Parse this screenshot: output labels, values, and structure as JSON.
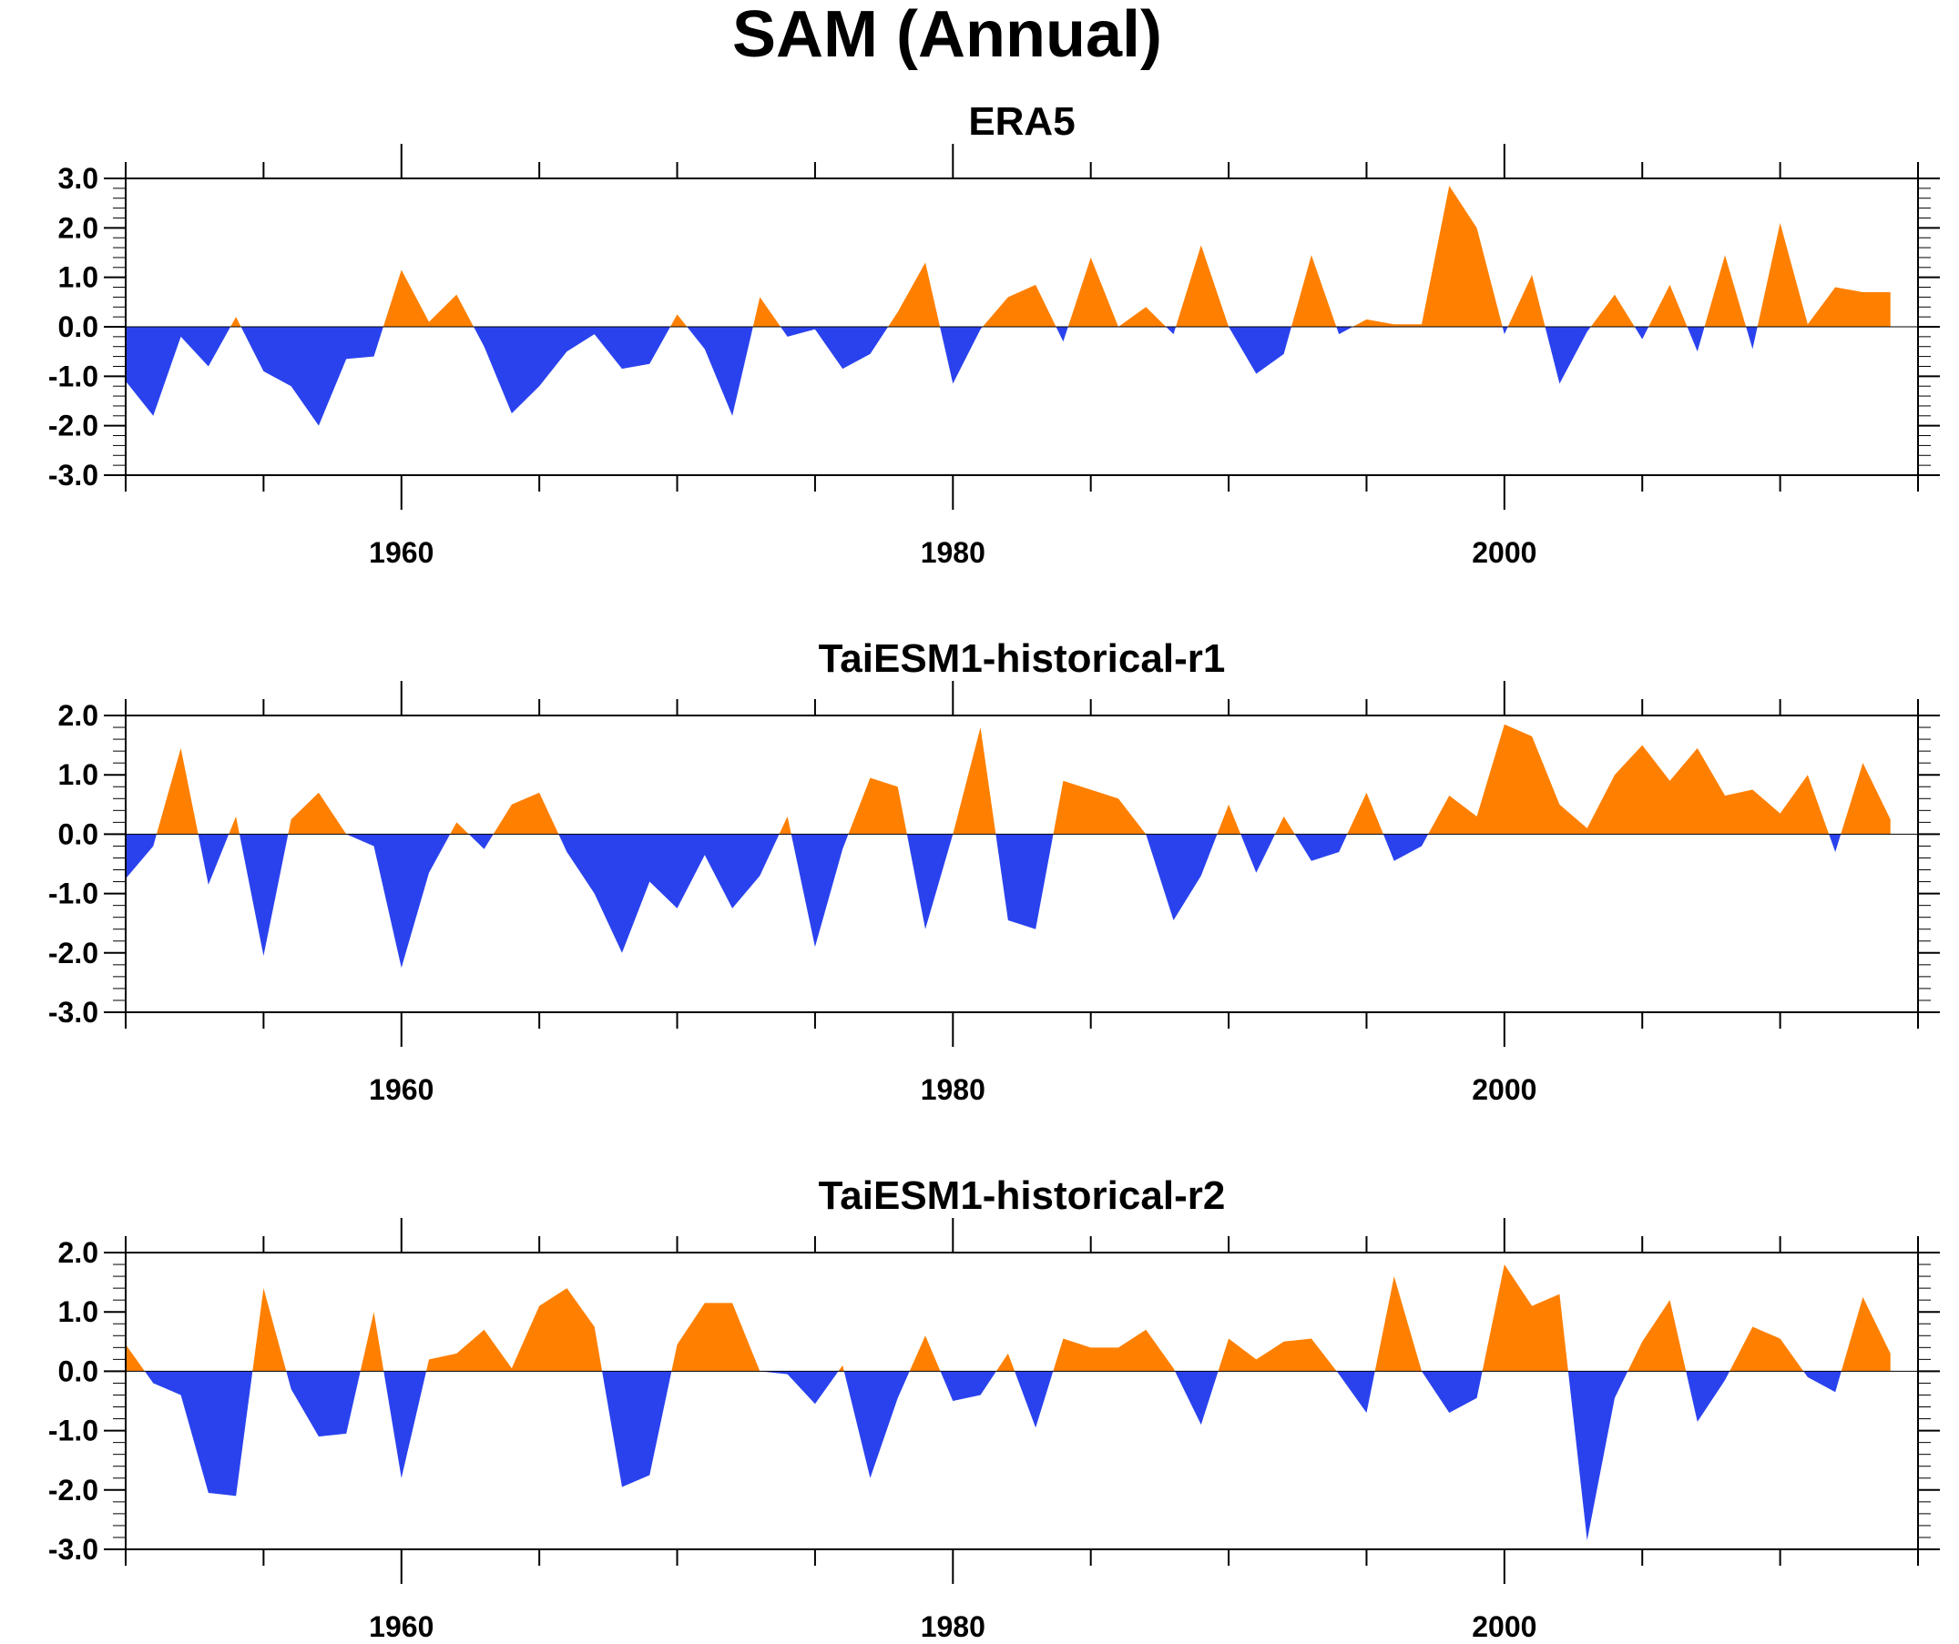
{
  "title": "SAM (Annual)",
  "colors": {
    "positive": "#FF8000",
    "negative": "#2A42EE",
    "axis": "#000000"
  },
  "chart_data": [
    {
      "type": "area",
      "title": "ERA5",
      "xlim": [
        1950,
        2015
      ],
      "ylim": [
        -3,
        3
      ],
      "xticks": [
        1960,
        1980,
        2000
      ],
      "xtick_labels": [
        "1960",
        "1980",
        "2000"
      ],
      "yticks": [
        -3,
        -2,
        -1,
        0,
        1,
        2,
        3
      ],
      "ytick_labels": [
        "-3.0",
        "-2.0",
        "-1.0",
        "0.0",
        "1.0",
        "2.0",
        "3.0"
      ],
      "x": [
        1950,
        1951,
        1952,
        1953,
        1954,
        1955,
        1956,
        1957,
        1958,
        1959,
        1960,
        1961,
        1962,
        1963,
        1964,
        1965,
        1966,
        1967,
        1968,
        1969,
        1970,
        1971,
        1972,
        1973,
        1974,
        1975,
        1976,
        1977,
        1978,
        1979,
        1980,
        1981,
        1982,
        1983,
        1984,
        1985,
        1986,
        1987,
        1988,
        1989,
        1990,
        1991,
        1992,
        1993,
        1994,
        1995,
        1996,
        1997,
        1998,
        1999,
        2000,
        2001,
        2002,
        2003,
        2004,
        2005,
        2006,
        2007,
        2008,
        2009,
        2010,
        2011,
        2012,
        2013,
        2014
      ],
      "values": [
        -1.1,
        -1.8,
        -0.2,
        -0.8,
        0.2,
        -0.9,
        -1.2,
        -2.0,
        -0.65,
        -0.6,
        1.15,
        0.1,
        0.65,
        -0.4,
        -1.75,
        -1.2,
        -0.5,
        -0.15,
        -0.85,
        -0.75,
        0.25,
        -0.45,
        -1.8,
        0.6,
        -0.2,
        -0.05,
        -0.85,
        -0.55,
        0.3,
        1.3,
        -1.15,
        -0.05,
        0.6,
        0.85,
        -0.3,
        1.4,
        0.0,
        0.4,
        -0.15,
        1.65,
        0.0,
        -0.95,
        -0.55,
        1.45,
        -0.15,
        0.15,
        0.05,
        0.05,
        2.85,
        2.0,
        -0.15,
        1.05,
        -1.15,
        -0.1,
        0.65,
        -0.25,
        0.85,
        -0.5,
        1.45,
        -0.45,
        2.1,
        0.05,
        0.8,
        0.7,
        0.7
      ]
    },
    {
      "type": "area",
      "title": "TaiESM1-historical-r1",
      "xlim": [
        1950,
        2015
      ],
      "ylim": [
        -3,
        2
      ],
      "xticks": [
        1960,
        1980,
        2000
      ],
      "xtick_labels": [
        "1960",
        "1980",
        "2000"
      ],
      "yticks": [
        -3,
        -2,
        -1,
        0,
        1,
        2
      ],
      "ytick_labels": [
        "-3.0",
        "-2.0",
        "-1.0",
        "0.0",
        "1.0",
        "2.0"
      ],
      "x": [
        1950,
        1951,
        1952,
        1953,
        1954,
        1955,
        1956,
        1957,
        1958,
        1959,
        1960,
        1961,
        1962,
        1963,
        1964,
        1965,
        1966,
        1967,
        1968,
        1969,
        1970,
        1971,
        1972,
        1973,
        1974,
        1975,
        1976,
        1977,
        1978,
        1979,
        1980,
        1981,
        1982,
        1983,
        1984,
        1985,
        1986,
        1987,
        1988,
        1989,
        1990,
        1991,
        1992,
        1993,
        1994,
        1995,
        1996,
        1997,
        1998,
        1999,
        2000,
        2001,
        2002,
        2003,
        2004,
        2005,
        2006,
        2007,
        2008,
        2009,
        2010,
        2011,
        2012,
        2013,
        2014
      ],
      "values": [
        -0.75,
        -0.2,
        1.45,
        -0.85,
        0.3,
        -2.05,
        0.25,
        0.7,
        0.0,
        -0.2,
        -2.25,
        -0.65,
        0.2,
        -0.25,
        0.5,
        0.7,
        -0.3,
        -1.0,
        -2.0,
        -0.8,
        -1.25,
        -0.35,
        -1.25,
        -0.7,
        0.3,
        -1.9,
        -0.25,
        0.95,
        0.8,
        -1.6,
        0.0,
        1.8,
        -1.45,
        -1.6,
        0.9,
        0.75,
        0.6,
        0.0,
        -1.45,
        -0.7,
        0.5,
        -0.65,
        0.3,
        -0.45,
        -0.3,
        0.7,
        -0.45,
        -0.2,
        0.65,
        0.3,
        1.85,
        1.65,
        0.5,
        0.1,
        1.0,
        1.5,
        0.9,
        1.45,
        0.65,
        0.75,
        0.35,
        1.0,
        -0.3,
        1.2,
        0.25
      ]
    },
    {
      "type": "area",
      "title": "TaiESM1-historical-r2",
      "xlim": [
        1950,
        2015
      ],
      "ylim": [
        -3,
        2
      ],
      "xticks": [
        1960,
        1980,
        2000
      ],
      "xtick_labels": [
        "1960",
        "1980",
        "2000"
      ],
      "yticks": [
        -3,
        -2,
        -1,
        0,
        1,
        2
      ],
      "ytick_labels": [
        "-3.0",
        "-2.0",
        "-1.0",
        "0.0",
        "1.0",
        "2.0"
      ],
      "x": [
        1950,
        1951,
        1952,
        1953,
        1954,
        1955,
        1956,
        1957,
        1958,
        1959,
        1960,
        1961,
        1962,
        1963,
        1964,
        1965,
        1966,
        1967,
        1968,
        1969,
        1970,
        1971,
        1972,
        1973,
        1974,
        1975,
        1976,
        1977,
        1978,
        1979,
        1980,
        1981,
        1982,
        1983,
        1984,
        1985,
        1986,
        1987,
        1988,
        1989,
        1990,
        1991,
        1992,
        1993,
        1994,
        1995,
        1996,
        1997,
        1998,
        1999,
        2000,
        2001,
        2002,
        2003,
        2004,
        2005,
        2006,
        2007,
        2008,
        2009,
        2010,
        2011,
        2012,
        2013,
        2014
      ],
      "values": [
        0.45,
        -0.2,
        -0.4,
        -2.05,
        -2.1,
        1.4,
        -0.3,
        -1.1,
        -1.05,
        1.0,
        -1.8,
        0.2,
        0.3,
        0.7,
        0.05,
        1.1,
        1.4,
        0.75,
        -1.95,
        -1.75,
        0.45,
        1.15,
        1.15,
        0.0,
        -0.05,
        -0.55,
        0.1,
        -1.8,
        -0.45,
        0.6,
        -0.5,
        -0.4,
        0.3,
        -0.95,
        0.55,
        0.4,
        0.4,
        0.7,
        0.05,
        -0.9,
        0.55,
        0.2,
        0.5,
        0.55,
        -0.05,
        -0.7,
        1.6,
        0.0,
        -0.7,
        -0.45,
        1.8,
        1.1,
        1.3,
        -2.85,
        -0.45,
        0.5,
        1.2,
        -0.85,
        -0.15,
        0.75,
        0.55,
        -0.1,
        -0.35,
        1.25,
        0.3
      ]
    }
  ]
}
